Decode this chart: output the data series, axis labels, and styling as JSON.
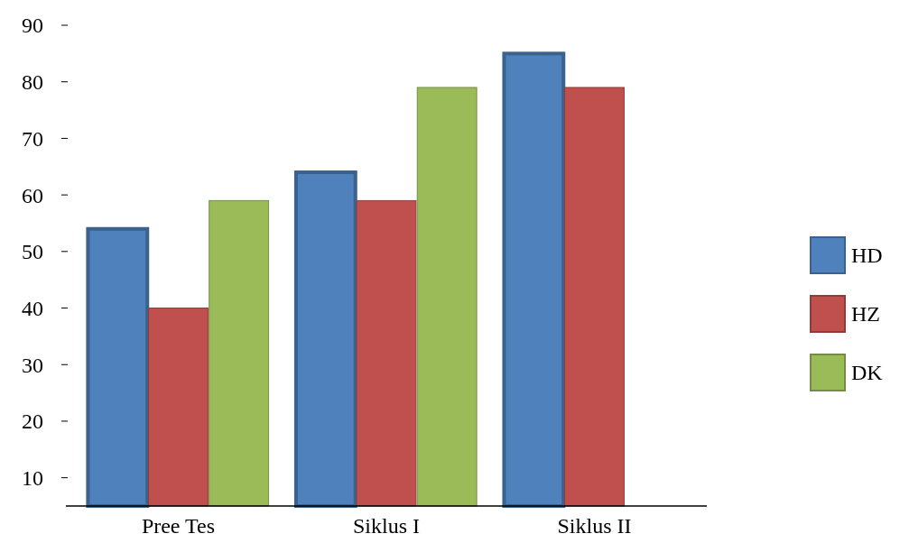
{
  "chart_data": {
    "type": "bar",
    "categories": [
      "Pree Tes",
      "Siklus I",
      "Siklus II"
    ],
    "series": [
      {
        "name": "HD",
        "color": "#4f81bd",
        "values": [
          54,
          64,
          85
        ]
      },
      {
        "name": "HZ",
        "color": "#c0504d",
        "values": [
          40,
          59,
          79
        ]
      },
      {
        "name": "DK",
        "color": "#9bbb59",
        "values": [
          59,
          79,
          null
        ]
      }
    ],
    "ylim": [
      5,
      90
    ],
    "yticks": [
      10,
      20,
      30,
      40,
      50,
      60,
      70,
      80,
      90
    ],
    "grid": false,
    "legend": "right"
  }
}
